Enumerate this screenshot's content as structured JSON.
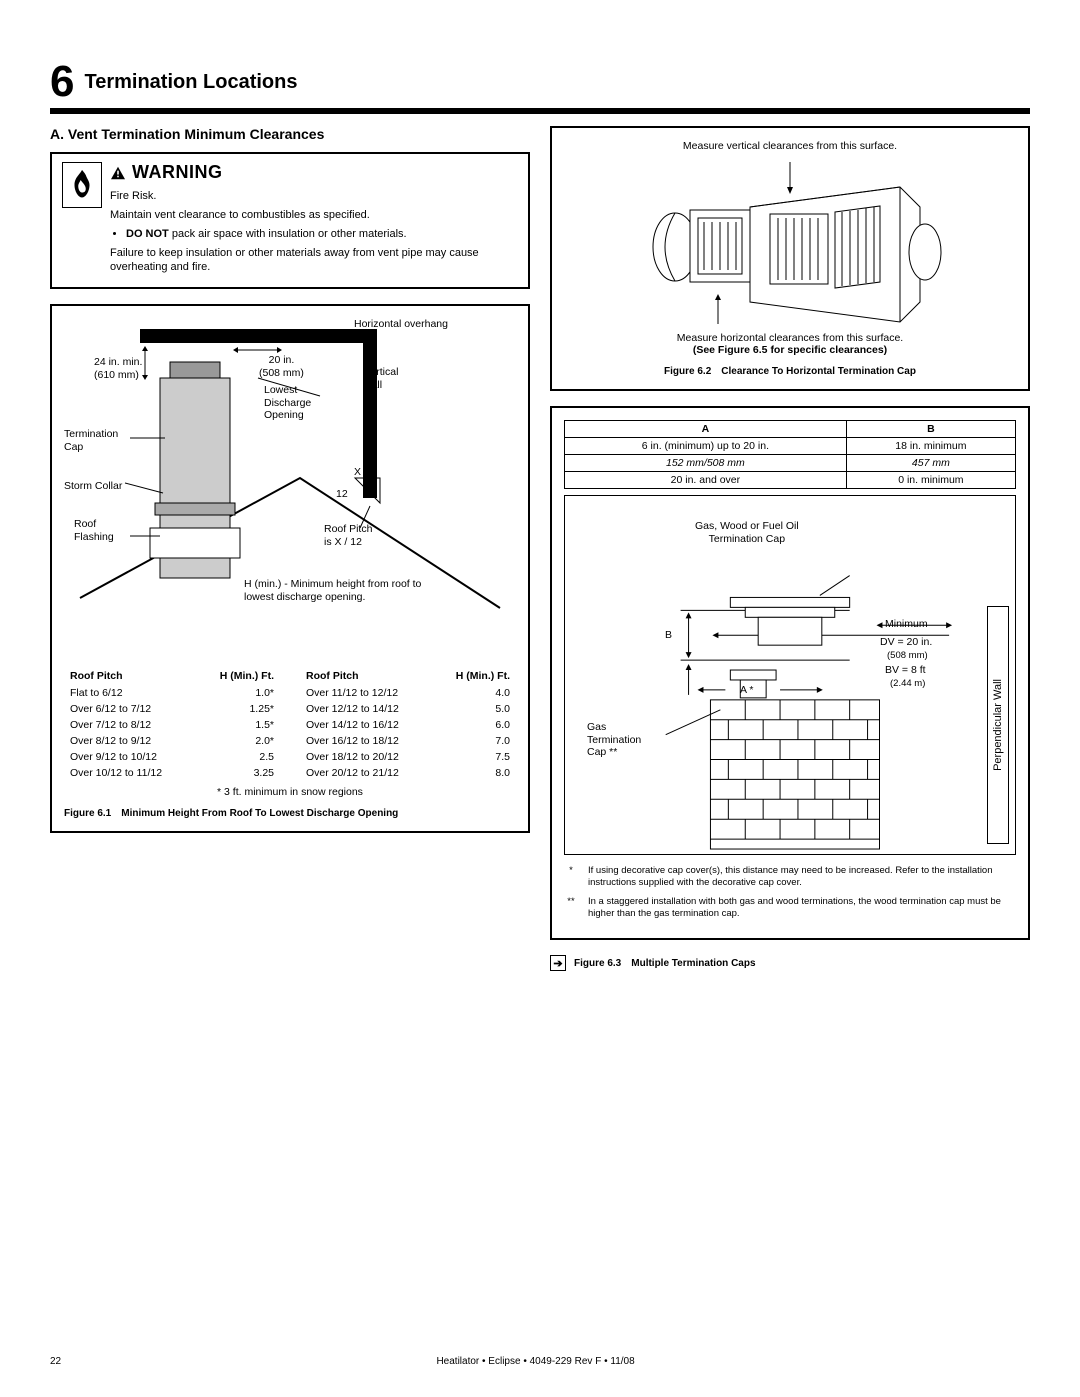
{
  "header": {
    "number": "6",
    "title": "Termination Locations"
  },
  "left": {
    "subtitle": "A. Vent Termination Minimum Clearances",
    "warning": {
      "title": "WARNING",
      "line1": "Fire Risk.",
      "line2": "Maintain vent clearance to combustibles as specified.",
      "bullet1": "DO NOT",
      "bullet1_rest": " pack air space with insulation or other materials.",
      "line3": "Failure to keep insulation or other materials away from vent pipe may cause overheating and fire."
    },
    "labels": {
      "horizontal_overhang": "Horizontal overhang",
      "v24": "24 in. min.\n(610 mm)",
      "v20": "20 in.\n(508 mm)",
      "lowest": "Lowest\nDischarge\nOpening",
      "vertical_wall": "Vertical\nwall",
      "term_cap": "Termination\nCap",
      "storm": "Storm Collar",
      "roof_flash": "Roof\nFlashing",
      "pitch": "Roof Pitch\nis X / 12",
      "hmin": "H (min.) - Minimum height from roof to lowest discharge opening.",
      "x": "X",
      "twelve": "12"
    },
    "pitch_table": {
      "header_pitch": "Roof Pitch",
      "header_h": "H (Min.) Ft.",
      "left_rows": [
        [
          "Flat to 6/12",
          "1.0*"
        ],
        [
          "Over 6/12 to 7/12",
          "1.25*"
        ],
        [
          "Over 7/12 to 8/12",
          "1.5*"
        ],
        [
          "Over 8/12 to 9/12",
          "2.0*"
        ],
        [
          "Over 9/12 to 10/12",
          "2.5"
        ],
        [
          "Over 10/12 to 11/12",
          "3.25"
        ]
      ],
      "right_rows": [
        [
          "Over 11/12 to 12/12",
          "4.0"
        ],
        [
          "Over 12/12 to 14/12",
          "5.0"
        ],
        [
          "Over 14/12 to 16/12",
          "6.0"
        ],
        [
          "Over 16/12 to 18/12",
          "7.0"
        ],
        [
          "Over 18/12 to 20/12",
          "7.5"
        ],
        [
          "Over 20/12 to 21/12",
          "8.0"
        ]
      ],
      "snow_note": "* 3 ft. minimum in snow regions"
    },
    "fig61": {
      "num": "Figure 6.1",
      "text": "Minimum Height From Roof To Lowest Discharge Opening"
    }
  },
  "right": {
    "top_labels": {
      "measure_v": "Measure vertical clearances from this surface.",
      "measure_h": "Measure horizontal clearances from this surface.",
      "see": "(See Figure 6.5 for specific clearances)"
    },
    "fig62": {
      "num": "Figure 6.2",
      "text": "Clearance To Horizontal Termination Cap"
    },
    "ab_table": {
      "headA": "A",
      "headB": "B",
      "rows": [
        {
          "a": "6 in. (minimum) up to 20 in.",
          "a_mm": "152 mm/508 mm",
          "b": "18 in. minimum",
          "b_mm": "457 mm"
        },
        {
          "a": "20 in. and over",
          "b": "0 in. minimum"
        }
      ]
    },
    "chimney": {
      "title": "Gas, Wood or Fuel Oil\nTermination Cap",
      "B": "B",
      "A": "A *",
      "gas": "Gas\nTermination\nCap **",
      "min": "Minimum",
      "dv": "DV = 20 in.",
      "dv_mm": "(508 mm)",
      "bv": "BV = 8 ft",
      "bv_m": "(2.44 m)",
      "perp": "Perpendicular Wall"
    },
    "footnotes": {
      "f1": "If using decorative cap cover(s), this distance may need to be increased. Refer to the installation instructions supplied with the decorative cap cover.",
      "f2": "In a staggered installation with both gas and wood terminations, the wood termination cap must be higher than the gas termination cap."
    },
    "fig63": {
      "num": "Figure 6.3",
      "text": "Multiple Termination Caps",
      "arrow": "➔"
    }
  },
  "footer": {
    "page": "22",
    "doc": "Heatilator • Eclipse • 4049-229 Rev F • 11/08"
  }
}
